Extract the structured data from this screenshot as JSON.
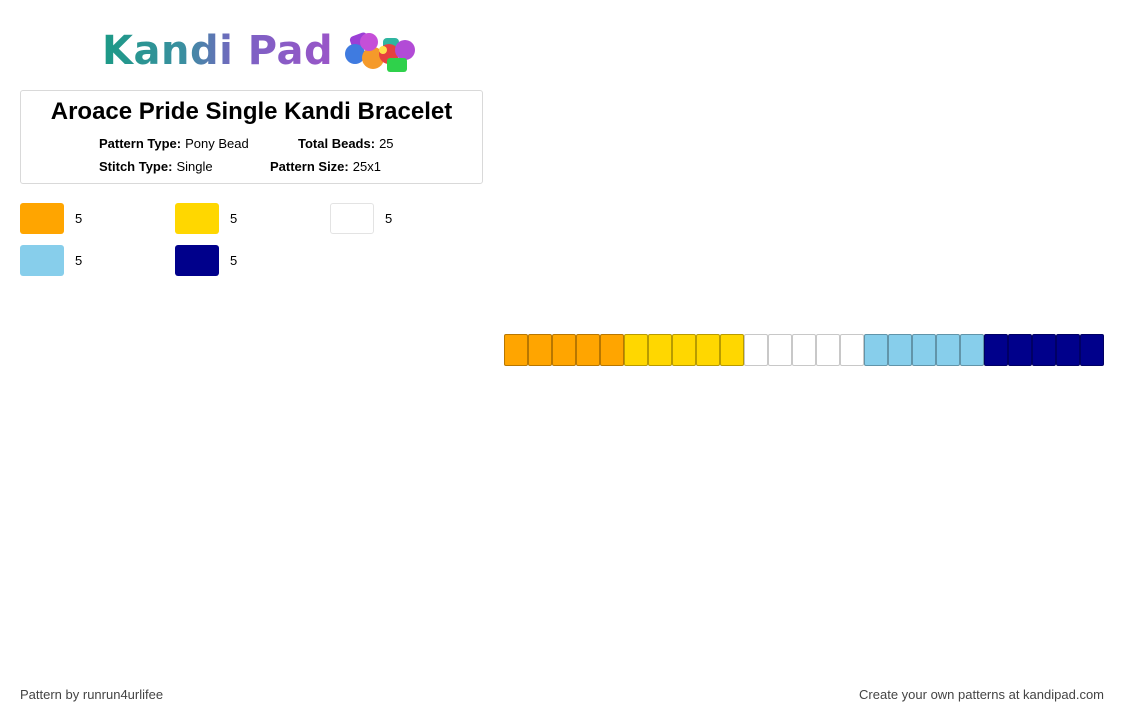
{
  "brand": {
    "name": "Kandi Pad"
  },
  "pattern": {
    "title": "Aroace Pride Single Kandi Bracelet",
    "type_label": "Pattern Type:",
    "type_value": "Pony Bead",
    "beads_label": "Total Beads:",
    "beads_value": "25",
    "stitch_label": "Stitch Type:",
    "stitch_value": "Single",
    "size_label": "Pattern Size:",
    "size_value": "25x1"
  },
  "palette": [
    {
      "color": "#FFA500",
      "count": "5"
    },
    {
      "color": "#FFD700",
      "count": "5"
    },
    {
      "color": "#FFFFFF",
      "count": "5"
    },
    {
      "color": "#87CEEB",
      "count": "5"
    },
    {
      "color": "#00008B",
      "count": "5"
    }
  ],
  "beads": [
    "#FFA500",
    "#FFA500",
    "#FFA500",
    "#FFA500",
    "#FFA500",
    "#FFD700",
    "#FFD700",
    "#FFD700",
    "#FFD700",
    "#FFD700",
    "#FFFFFF",
    "#FFFFFF",
    "#FFFFFF",
    "#FFFFFF",
    "#FFFFFF",
    "#87CEEB",
    "#87CEEB",
    "#87CEEB",
    "#87CEEB",
    "#87CEEB",
    "#00008B",
    "#00008B",
    "#00008B",
    "#00008B",
    "#00008B"
  ],
  "footer": {
    "credit": "Pattern by runrun4urlifee",
    "promo": "Create your own patterns at kandipad.com"
  }
}
